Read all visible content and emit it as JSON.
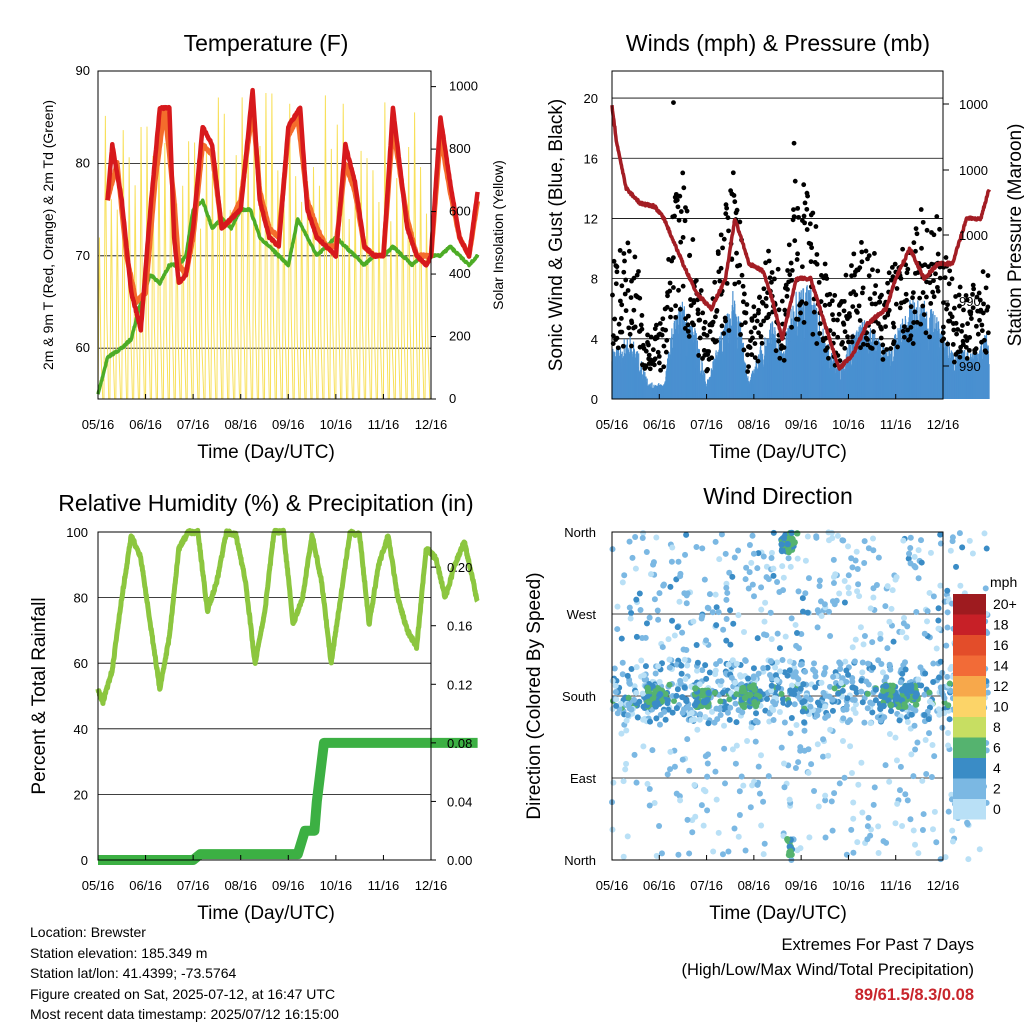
{
  "chart_data": [
    {
      "id": "temp",
      "type": "line",
      "title": "Temperature (F)",
      "xlabel": "Time (Day/UTC)",
      "ylabel_left": "2m & 9m T (Red, Orange) & 2m Td (Green)",
      "ylabel_right": "Solar Insolation (Yellow)",
      "x_ticks": [
        "05/16",
        "06/16",
        "07/16",
        "08/16",
        "09/16",
        "10/16",
        "11/16",
        "12/16"
      ],
      "y_left_ticks": [
        60,
        70,
        80,
        90
      ],
      "y_left_range": [
        54.5,
        90
      ],
      "y_right_ticks": [
        0,
        200,
        400,
        600,
        800,
        1000
      ],
      "y_right_range": [
        0,
        1050
      ],
      "grid": true,
      "colors": {
        "t2m": "#d7191c",
        "t9m": "#f46d2c",
        "td": "#4dac26",
        "solar": "#f8e05a"
      },
      "series": [
        {
          "key": "t2m",
          "x": [
            5.2,
            5.3,
            5.5,
            5.7,
            5.9,
            6.1,
            6.3,
            6.5,
            6.6,
            6.7,
            6.85,
            7.0,
            7.2,
            7.4,
            7.6,
            7.8,
            8.0,
            8.25,
            8.4,
            8.6,
            8.8,
            9.0,
            9.25,
            9.4,
            9.6,
            9.8,
            10.0,
            10.2,
            10.4,
            10.6,
            10.8,
            11.0,
            11.2,
            11.5,
            11.7,
            11.9,
            12.0,
            12.2,
            12.4,
            12.6,
            12.8,
            12.98
          ],
          "y": [
            76,
            82,
            76,
            66,
            62,
            75,
            86,
            86,
            72,
            67,
            68,
            73,
            84,
            82,
            73,
            74,
            75,
            88,
            76,
            72,
            71,
            84,
            86,
            75,
            72,
            71,
            70,
            82,
            78,
            71,
            70,
            70,
            86,
            73,
            70,
            69,
            70,
            85,
            78,
            72,
            70,
            77
          ]
        },
        {
          "key": "t9m",
          "x": [
            5.2,
            5.4,
            5.6,
            5.8,
            6.0,
            6.2,
            6.4,
            6.6,
            6.7,
            6.85,
            7.0,
            7.2,
            7.4,
            7.6,
            7.8,
            8.0,
            8.25,
            8.4,
            8.6,
            8.8,
            9.0,
            9.2,
            9.4,
            9.6,
            9.8,
            10.0,
            10.2,
            10.4,
            10.6,
            10.8,
            11.0,
            11.2,
            11.5,
            11.7,
            11.9,
            12.0,
            12.2,
            12.4,
            12.6,
            12.8,
            12.98
          ],
          "y": [
            76,
            80,
            70,
            65,
            66,
            78,
            86,
            76,
            69,
            68,
            72,
            82,
            81,
            73,
            74,
            76,
            86,
            77,
            73,
            72,
            83,
            85,
            76,
            73,
            71,
            71,
            80,
            77,
            71,
            70,
            70,
            84,
            74,
            70,
            70,
            70,
            83,
            77,
            72,
            70,
            76
          ]
        },
        {
          "key": "td",
          "x": [
            5.0,
            5.2,
            5.5,
            5.7,
            5.9,
            6.1,
            6.3,
            6.5,
            6.7,
            6.85,
            7.0,
            7.2,
            7.4,
            7.6,
            7.8,
            8.0,
            8.2,
            8.4,
            8.6,
            8.8,
            9.0,
            9.2,
            9.4,
            9.6,
            9.8,
            10.0,
            10.2,
            10.4,
            10.6,
            10.8,
            11.0,
            11.2,
            11.4,
            11.6,
            11.8,
            12.0,
            12.2,
            12.4,
            12.6,
            12.8,
            12.98
          ],
          "y": [
            55,
            59,
            60,
            61,
            65,
            68,
            67,
            69,
            69,
            70,
            75,
            76,
            73,
            74,
            73,
            75,
            75,
            72,
            71,
            70,
            69,
            74,
            72,
            70,
            71,
            72,
            71,
            70,
            69,
            70,
            70,
            71,
            70,
            69,
            70,
            70,
            70,
            71,
            70,
            69,
            70
          ]
        },
        {
          "key": "solar",
          "peaks": [
            5.35,
            6.3,
            7.3,
            8.3,
            9.3,
            10.3,
            11.3,
            12.3
          ],
          "peak_values": [
            940,
            980,
            950,
            1000,
            1020,
            1000,
            990,
            950
          ]
        }
      ]
    },
    {
      "id": "winds",
      "type": "scatter",
      "title": "Winds (mph) & Pressure (mb)",
      "xlabel": "Time (Day/UTC)",
      "ylabel_left": "Sonic Wind & Gust (Blue, Black)",
      "ylabel_right": "Station Pressure (Maroon)",
      "x_ticks": [
        "05/16",
        "06/16",
        "07/16",
        "08/16",
        "09/16",
        "10/16",
        "11/16",
        "12/16"
      ],
      "y_left_ticks": [
        0,
        4,
        8,
        12,
        16,
        20
      ],
      "y_left_range": [
        0,
        21.8
      ],
      "y_right_ticks": [
        "1000",
        "1000",
        "1000",
        "990",
        "990"
      ],
      "grid": true,
      "colors": {
        "wind": "#4a90d0",
        "gust": "#000000",
        "pressure": "#a31d24"
      },
      "wind_envelope": {
        "x": [
          5.0,
          5.4,
          5.8,
          6.1,
          6.3,
          6.5,
          6.8,
          7.0,
          7.3,
          7.6,
          7.9,
          8.1,
          8.4,
          8.6,
          8.9,
          9.2,
          9.5,
          9.8,
          10.1,
          10.4,
          10.8,
          11.0,
          11.3,
          11.6,
          11.9,
          12.2,
          12.6,
          12.9
        ],
        "y": [
          3,
          4,
          1,
          1,
          5,
          6,
          4,
          1,
          4,
          7,
          1,
          3,
          5,
          3,
          7,
          7,
          4,
          2,
          4,
          5,
          3,
          4,
          6,
          6,
          5,
          3,
          3,
          4
        ]
      },
      "gust_envelope": {
        "x": [
          5.0,
          5.4,
          5.8,
          6.1,
          6.3,
          6.5,
          6.8,
          7.0,
          7.3,
          7.6,
          7.9,
          8.1,
          8.4,
          8.6,
          8.9,
          9.2,
          9.5,
          9.8,
          10.1,
          10.4,
          10.8,
          11.0,
          11.3,
          11.6,
          11.9,
          12.2,
          12.6,
          12.9
        ],
        "y": [
          9,
          10,
          4,
          5,
          12,
          14,
          8,
          5,
          10,
          15,
          4,
          7,
          10,
          6,
          14,
          12,
          8,
          6,
          9,
          10,
          7,
          9,
          10,
          12,
          11,
          7,
          7,
          8
        ]
      },
      "pressure": {
        "x": [
          5.0,
          5.1,
          5.3,
          5.6,
          5.9,
          6.1,
          6.3,
          6.5,
          6.8,
          7.1,
          7.4,
          7.6,
          7.9,
          8.2,
          8.4,
          8.6,
          8.9,
          9.2,
          9.5,
          9.8,
          10.1,
          10.4,
          10.8,
          11.0,
          11.3,
          11.6,
          11.9,
          12.2,
          12.5,
          12.8,
          12.98
        ],
        "y": [
          19.5,
          17,
          14,
          13,
          12.8,
          12,
          10.5,
          9,
          7,
          6,
          8,
          12,
          9,
          8.5,
          6.5,
          4,
          8,
          8,
          5,
          2,
          3,
          5,
          6,
          8,
          10,
          8,
          9,
          9,
          12,
          12,
          14
        ]
      }
    },
    {
      "id": "rh",
      "type": "line",
      "title": "Relative Humidity (%) & Precipitation (in)",
      "xlabel": "Time (Day/UTC)",
      "ylabel_left": "Percent & Total Rainfall",
      "x_ticks": [
        "05/16",
        "06/16",
        "07/16",
        "08/16",
        "09/16",
        "10/16",
        "11/16",
        "12/16"
      ],
      "y_left_ticks": [
        0,
        20,
        40,
        60,
        80,
        100
      ],
      "y_left_range": [
        0,
        100
      ],
      "y_right_ticks": [
        "0.00",
        "0.04",
        "0.08",
        "0.12",
        "0.16",
        "0.20"
      ],
      "y_right_range": [
        0,
        0.224
      ],
      "grid": true,
      "colors": {
        "rh": "#8cc63f",
        "precip": "#3cb043"
      },
      "series": [
        {
          "key": "rh",
          "x": [
            5.0,
            5.1,
            5.3,
            5.5,
            5.7,
            5.9,
            6.1,
            6.3,
            6.5,
            6.7,
            6.9,
            7.1,
            7.3,
            7.5,
            7.7,
            7.9,
            8.1,
            8.3,
            8.5,
            8.7,
            8.9,
            9.1,
            9.3,
            9.5,
            9.7,
            9.9,
            10.1,
            10.3,
            10.5,
            10.7,
            10.9,
            11.1,
            11.3,
            11.5,
            11.7,
            11.9,
            12.1,
            12.3,
            12.5,
            12.7,
            12.9,
            12.98
          ],
          "y": [
            52,
            48,
            58,
            80,
            99,
            92,
            72,
            52,
            68,
            95,
            100,
            100,
            76,
            85,
            100,
            99,
            85,
            60,
            75,
            100,
            100,
            72,
            80,
            99,
            85,
            60,
            80,
            100,
            99,
            72,
            90,
            99,
            80,
            70,
            65,
            95,
            92,
            80,
            90,
            97,
            84,
            78
          ]
        },
        {
          "key": "precip",
          "x": [
            5.0,
            7.0,
            7.15,
            9.2,
            9.35,
            9.55,
            9.6,
            9.75,
            13.0
          ],
          "y": [
            0,
            0,
            0.004,
            0.004,
            0.02,
            0.02,
            0.04,
            0.08,
            0.08
          ]
        }
      ]
    },
    {
      "id": "dir",
      "type": "scatter",
      "title": "Wind Direction",
      "xlabel": "Time (Day/UTC)",
      "ylabel_left": "Direction (Colored By Speed)",
      "x_ticks": [
        "05/16",
        "06/16",
        "07/16",
        "08/16",
        "09/16",
        "10/16",
        "11/16",
        "12/16"
      ],
      "y_ticks": [
        "North",
        "East",
        "South",
        "West",
        "North"
      ],
      "grid": true,
      "legend_title": "mph",
      "legend_labels": [
        "20+",
        "18",
        "16",
        "14",
        "12",
        "10",
        "8",
        "6",
        "4",
        "2",
        "0"
      ],
      "legend_colors": [
        "#9e1b1f",
        "#c72027",
        "#e34d2a",
        "#f26b37",
        "#f7a84b",
        "#fcd468",
        "#c7de62",
        "#55b36f",
        "#3a8cc6",
        "#7bb8e3",
        "#b9e0f6"
      ],
      "clusters": [
        {
          "x": 5.9,
          "dir": "South"
        },
        {
          "x": 6.9,
          "dir": "South"
        },
        {
          "x": 7.9,
          "dir": "South"
        },
        {
          "x": 8.75,
          "dir": "North-top"
        },
        {
          "x": 10.9,
          "dir": "South"
        },
        {
          "x": 11.3,
          "dir": "South"
        }
      ]
    }
  ],
  "info": {
    "location": "Location: Brewster",
    "elevation": "Station elevation: 185.349 m",
    "latlon": "Station lat/lon: 41.4399; -73.5764",
    "created": "Figure created on Sat, 2025-07-12, at 16:47 UTC",
    "recent": "Most recent data timestamp: 2025/07/12 16:15:00"
  },
  "extremes": {
    "line1": "Extremes For Past 7 Days",
    "line2": "(High/Low/Max Wind/Total Precipitation)",
    "value": "89/61.5/8.3/0.08"
  }
}
